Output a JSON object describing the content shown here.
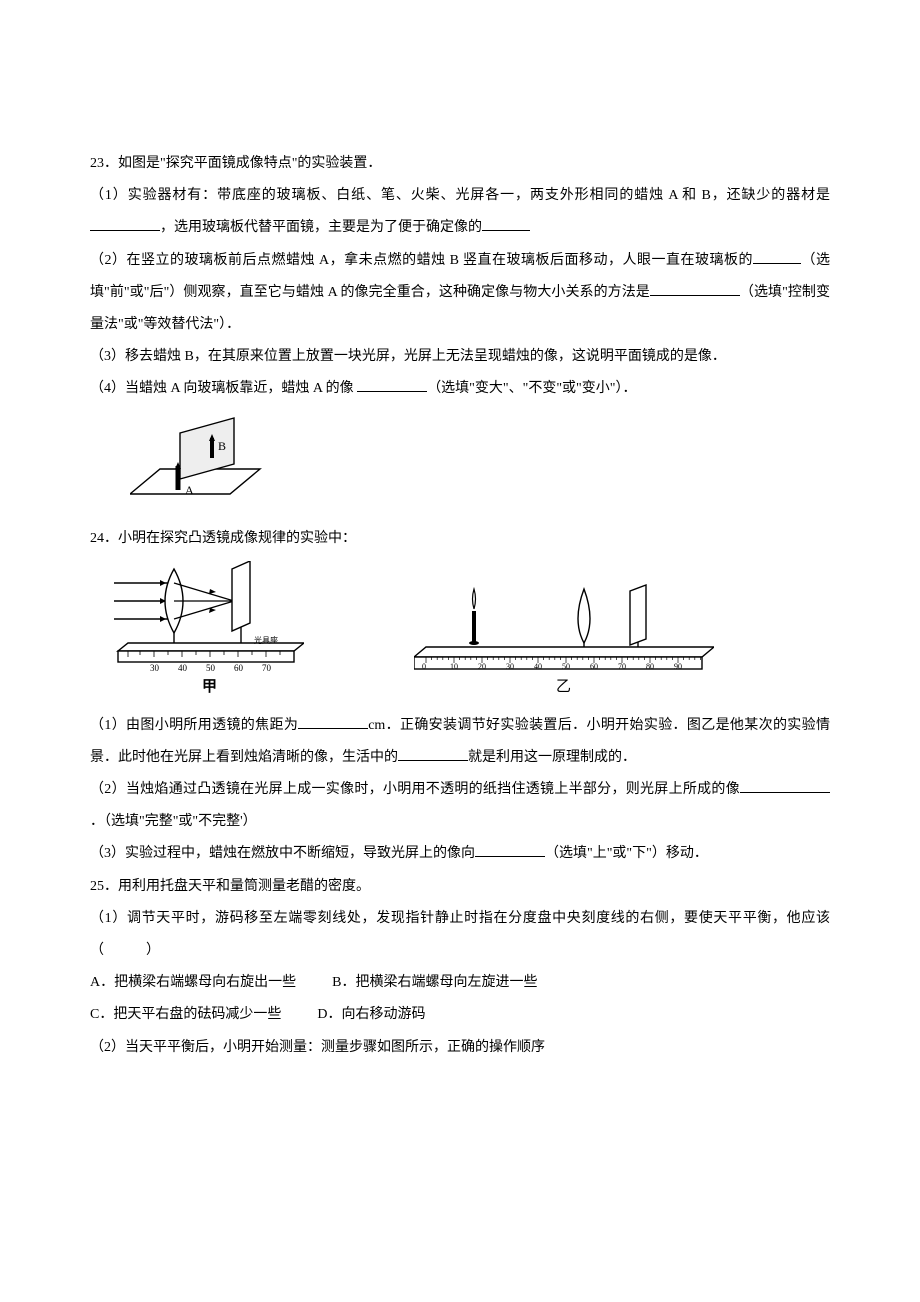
{
  "q23": {
    "num": "23．",
    "intro": "如图是\"探究平面镜成像特点\"的实验装置．",
    "p1_a": "（1）实验器材有：带底座的玻璃板、白纸、笔、火柴、光屏各一，两支外形相同的蜡烛 A 和 B，还缺少的器材是",
    "p1_b": "，选用玻璃板代替平面镜，主要是为了便于确定像的",
    "p2_a": "（2）在竖立的玻璃板前后点燃蜡烛 A，拿未点燃的蜡烛 B 竖直在玻璃板后面移动，人眼一直在玻璃板的",
    "p2_b": "（选填\"前\"或\"后\"）侧观察，直至它与蜡烛 A 的像完全重合，这种确定像与物大小关系的方法是",
    "p2_c": "（选填\"控制变量法\"或\"等效替代法\"）．",
    "p3": "（3）移去蜡烛 B，在其原来位置上放置一块光屏，光屏上无法呈现蜡烛的像，这说明平面镜成的是像．",
    "p4_a": "（4）当蜡烛 A 向玻璃板靠近，蜡烛 A 的像 ",
    "p4_b": "（选填\"变大\"、\"不变\"或\"变小\"）．",
    "fig": {
      "labelA": "A",
      "labelB": "B"
    }
  },
  "q24": {
    "num": "24．",
    "intro": "小明在探究凸透镜成像规律的实验中：",
    "fig1": {
      "label": "甲",
      "ticks": [
        "30",
        "40",
        "50",
        "60",
        "70"
      ],
      "sublabel": "光具座"
    },
    "fig2": {
      "label": "乙",
      "ticks": [
        "0",
        "10",
        "20",
        "30",
        "40",
        "50",
        "60",
        "70",
        "80",
        "90"
      ]
    },
    "p1_a": "（1）由图小明所用透镜的焦距为",
    "p1_b": "cm．正确安装调节好实验装置后．小明开始实验．图乙是他某次的实验情景．此时他在光屏上看到烛焰清晰的像，生活中的",
    "p1_c": "就是利用这一原理制成的．",
    "p2_a": "（2）当烛焰通过凸透镜在光屏上成一实像时，小明用不透明的纸挡住透镜上半部分，则光屏上所成的像",
    "p2_b": "．（选填\"完整\"或\"不完整'）",
    "p3_a": "（3）实验过程中，蜡烛在燃放中不断缩短，导致光屏上的像向",
    "p3_b": "（选填\"上\"或\"下\"）移动．"
  },
  "q25": {
    "num": "25．",
    "intro": "用利用托盘天平和量筒测量老醋的密度。",
    "p1": "（1）调节天平时，游码移至左端零刻线处，发现指针静止时指在分度盘中央刻度线的右侧，要使天平平衡，他应该（　　　）",
    "optA": "A．把横梁右端螺母向右旋出一些",
    "optB": "B．把横梁右端螺母向左旋进一些",
    "optC": "C．把天平右盘的砝码减少一些",
    "optD": "D．向右移动游码",
    "p2": "（2）当天平平衡后，小明开始测量：测量步骤如图所示，正确的操作顺序"
  },
  "style": {
    "stroke": "#000000",
    "fill_white": "#ffffff",
    "fill_gray": "#c8c8c8",
    "font_fig": 10
  }
}
